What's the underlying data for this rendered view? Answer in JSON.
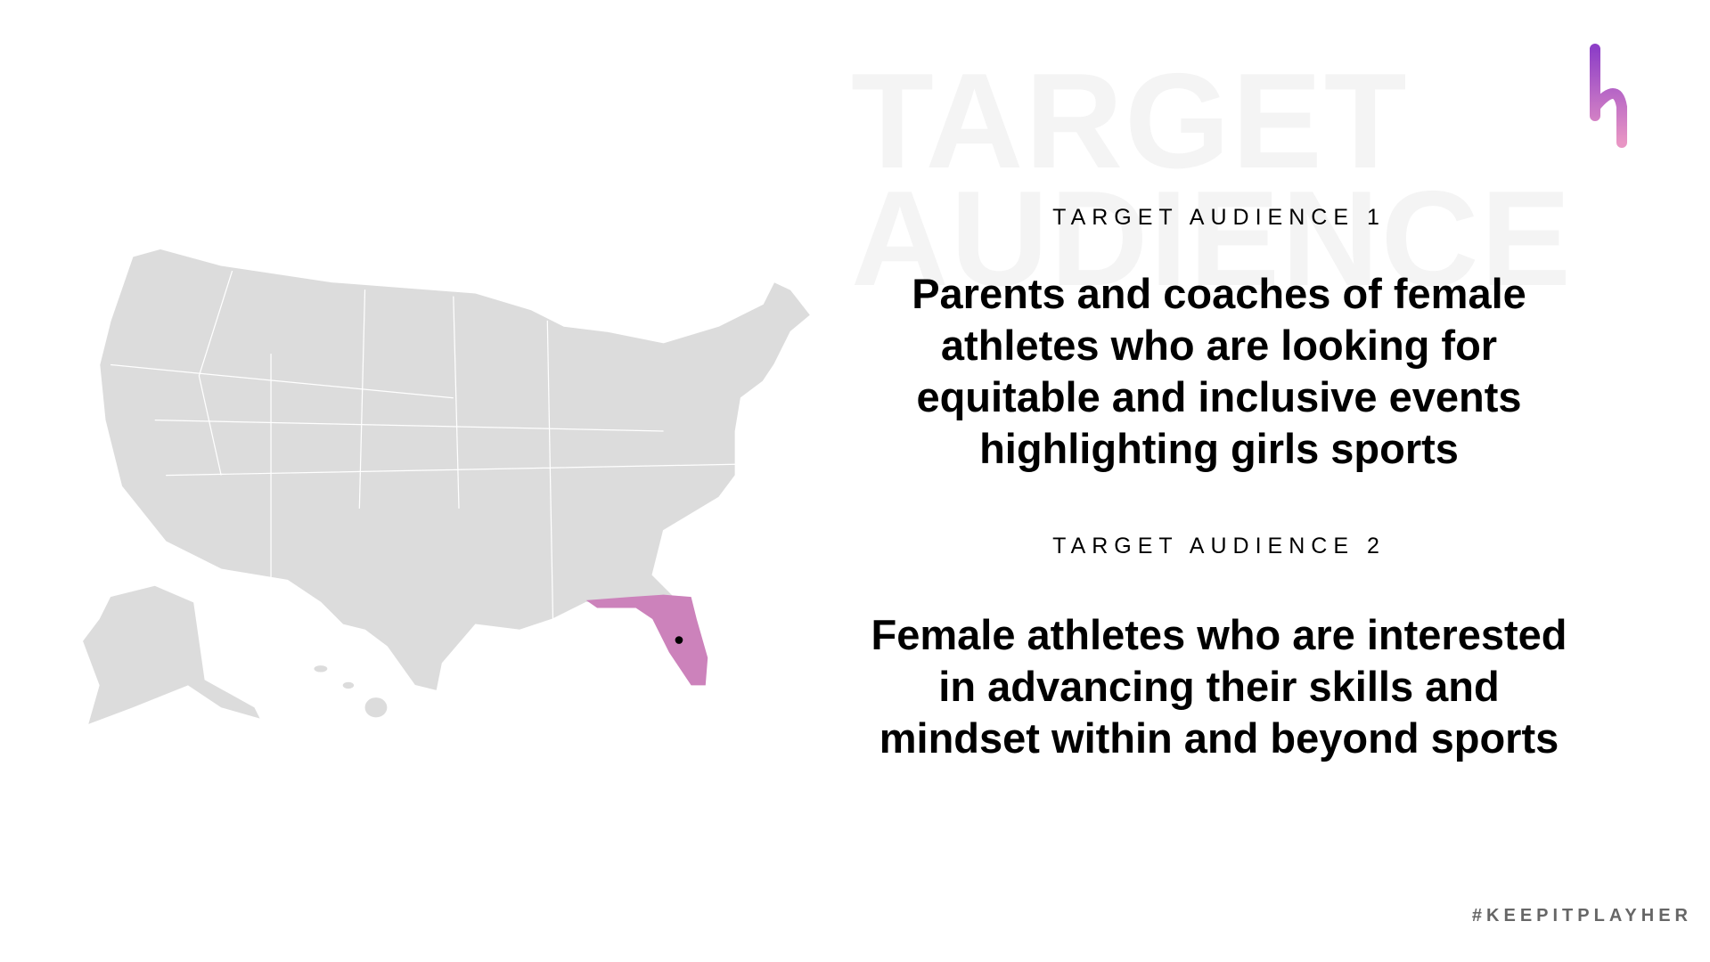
{
  "watermark": {
    "lines": [
      "TARGET",
      "AUDIENCE"
    ]
  },
  "sections": [
    {
      "heading": "TARGET AUDIENCE 1",
      "body_lines": [
        "Parents and coaches of female",
        "athletes who are looking for",
        "equitable and inclusive events",
        "highlighting girls sports"
      ]
    },
    {
      "heading": "TARGET AUDIENCE 2",
      "body_lines": [
        "Female athletes who are interested",
        "in advancing their skills and",
        "mindset within and beyond sports"
      ]
    }
  ],
  "footer": {
    "hashtag": "#KEEPITPLAYHER"
  }
}
